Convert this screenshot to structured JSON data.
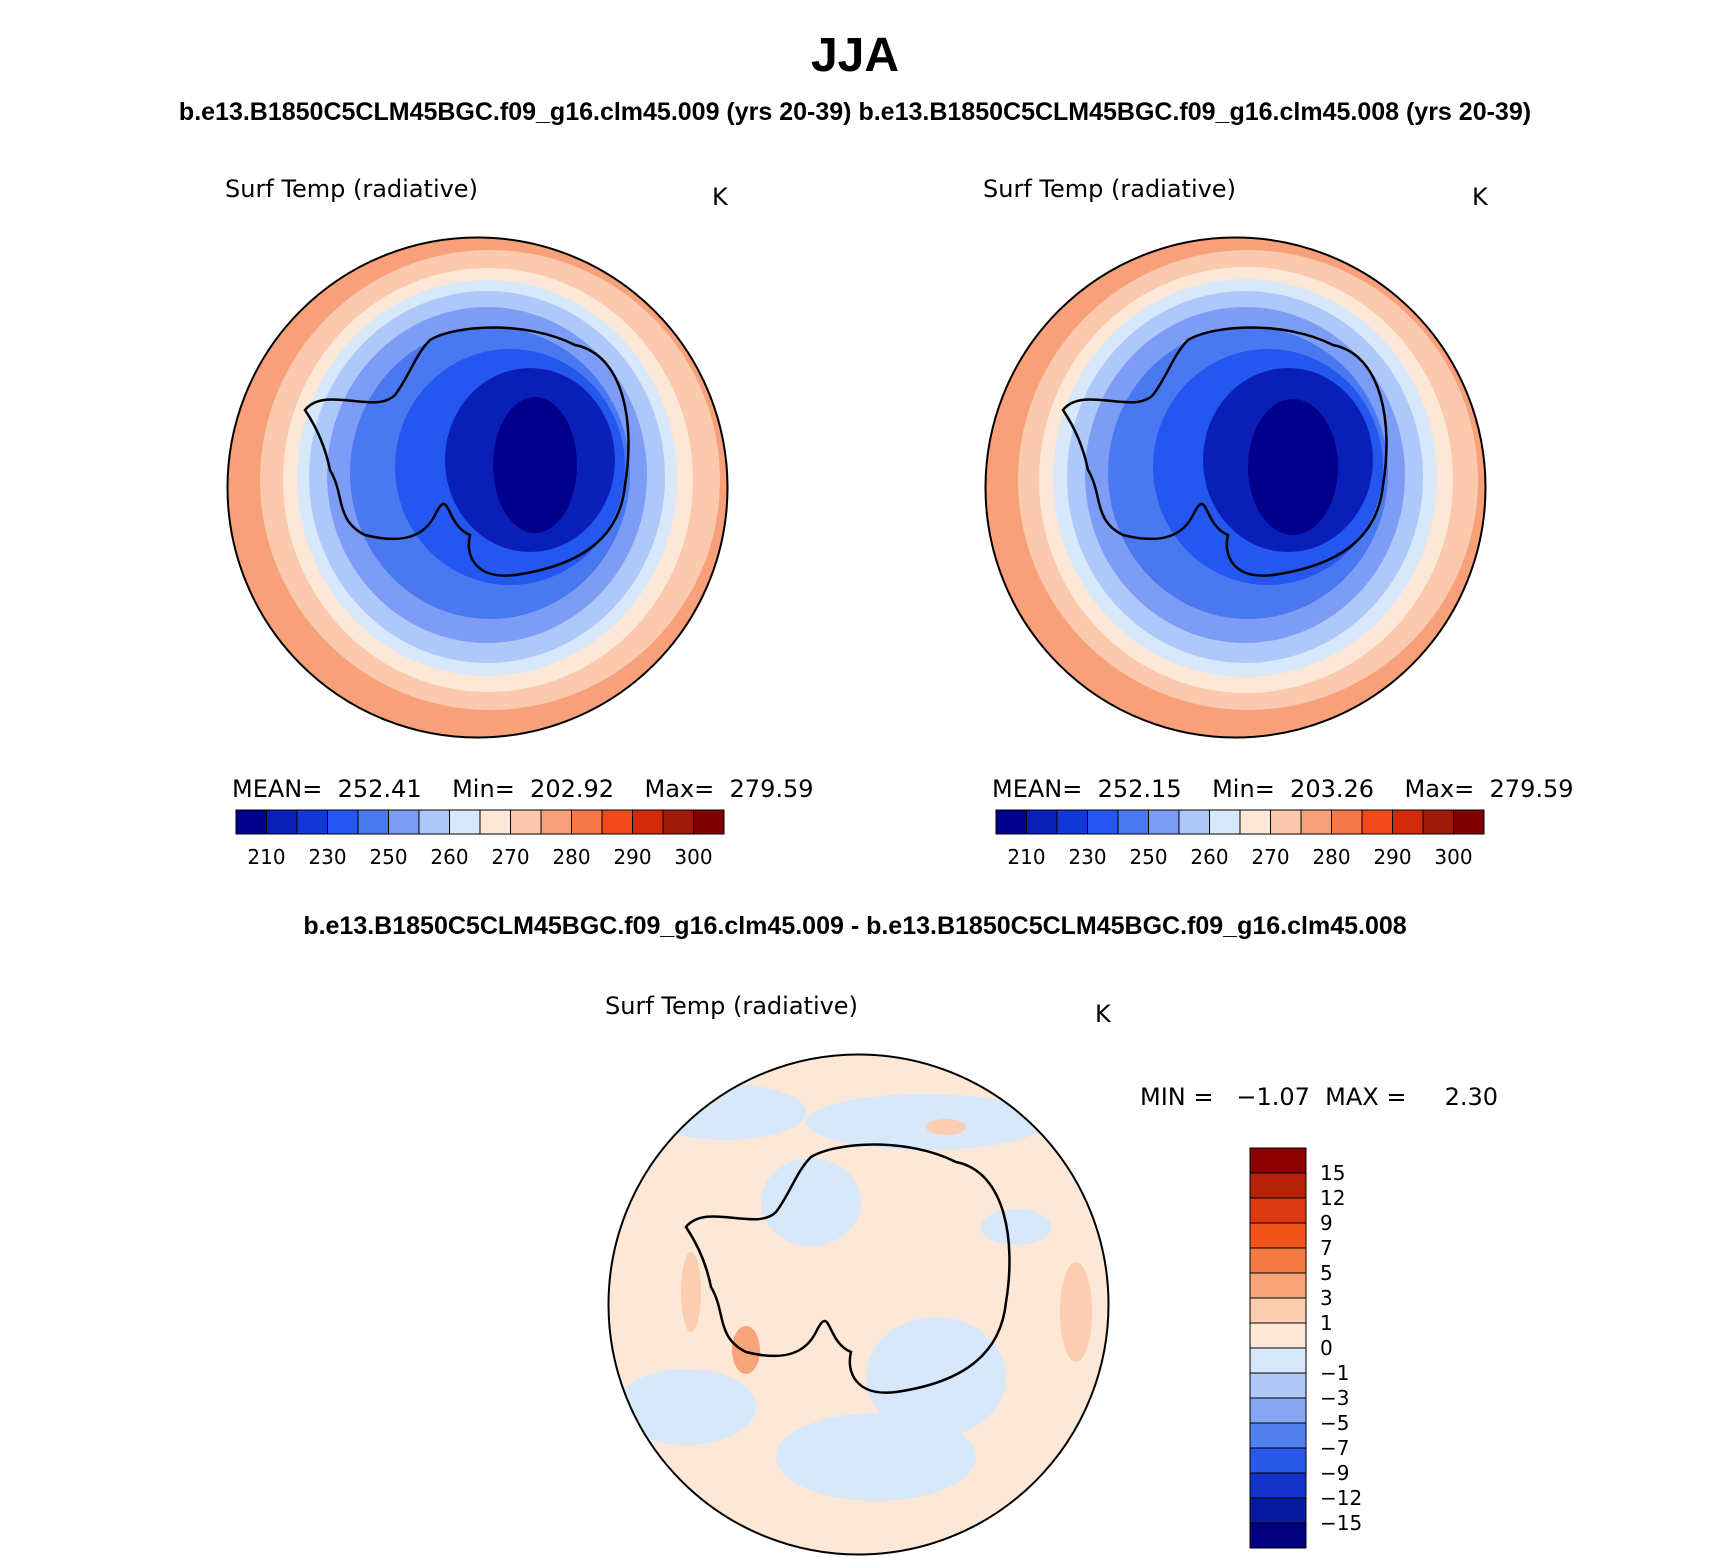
{
  "figure": {
    "title": "JJA",
    "case_a": "b.e13.B1850C5CLM45BGC.f09_g16.clm45.009 (yrs 20-39)",
    "case_b": "b.e13.B1850C5CLM45BGC.f09_g16.clm45.008 (yrs 20-39)",
    "diff_title": "b.e13.B1850C5CLM45BGC.f09_g16.clm45.009 - b.e13.B1850C5CLM45BGC.f09_g16.clm45.008"
  },
  "panels": [
    {
      "variable": "Surf Temp (radiative)",
      "units": "K",
      "stats_text": "MEAN=  252.41    Min=  202.92    Max=  279.59",
      "colorbar_labels": [
        "210",
        "230",
        "250",
        "260",
        "270",
        "280",
        "290",
        "300"
      ]
    },
    {
      "variable": "Surf Temp (radiative)",
      "units": "K",
      "stats_text": "MEAN=  252.15    Min=  203.26    Max=  279.59",
      "colorbar_labels": [
        "210",
        "230",
        "250",
        "260",
        "270",
        "280",
        "290",
        "300"
      ]
    },
    {
      "variable": "Surf Temp (radiative)",
      "units": "K",
      "stats_text": "MIN =   −1.07  MAX =     2.30",
      "colorbar_labels": [
        "15",
        "12",
        "9",
        "7",
        "5",
        "3",
        "1",
        "0",
        "−1",
        "−3",
        "−5",
        "−7",
        "−9",
        "−12",
        "−15"
      ]
    }
  ],
  "abs_colors": [
    "#00008b",
    "#0a1fb8",
    "#1438d8",
    "#2456f0",
    "#4a78f0",
    "#7c9cf6",
    "#aec8fa",
    "#d8e8fb",
    "#fde7d6",
    "#fbc9ad",
    "#f8a07a",
    "#f5784a",
    "#f04a1c",
    "#cf2a0a",
    "#a01a08",
    "#800000"
  ],
  "diff_colors": [
    "#8b0000",
    "#b42208",
    "#dc3a12",
    "#f2541c",
    "#f47a44",
    "#f8a47a",
    "#fbcdb1",
    "#fde8d7",
    "#d8e8fb",
    "#b0c8f8",
    "#86a6f4",
    "#5480ee",
    "#2a58e8",
    "#1232c8",
    "#081aa0",
    "#000080"
  ]
}
